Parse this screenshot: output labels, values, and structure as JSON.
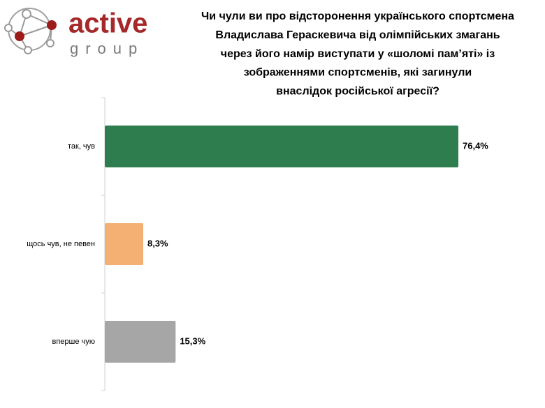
{
  "logo": {
    "name": "active",
    "tagline": "group"
  },
  "chart_data": {
    "type": "bar",
    "orientation": "horizontal",
    "title": [
      "Чи чули ви про відсторонення українського спортсмена",
      "Владислава Гераскевича від олімпійських змагань",
      "через його намір виступати у «шоломі пам’яті» із",
      "зображеннями спортсменів, які загинули",
      "внаслідок російської агресії?"
    ],
    "categories": [
      "так, чув",
      "щось чув, не певен",
      "вперше чую"
    ],
    "values": [
      76.4,
      8.3,
      15.3
    ],
    "value_labels": [
      "76,4%",
      "8,3%",
      "15,3%"
    ],
    "colors": [
      "#2e7d4e",
      "#f4b072",
      "#a6a6a6"
    ]
  }
}
